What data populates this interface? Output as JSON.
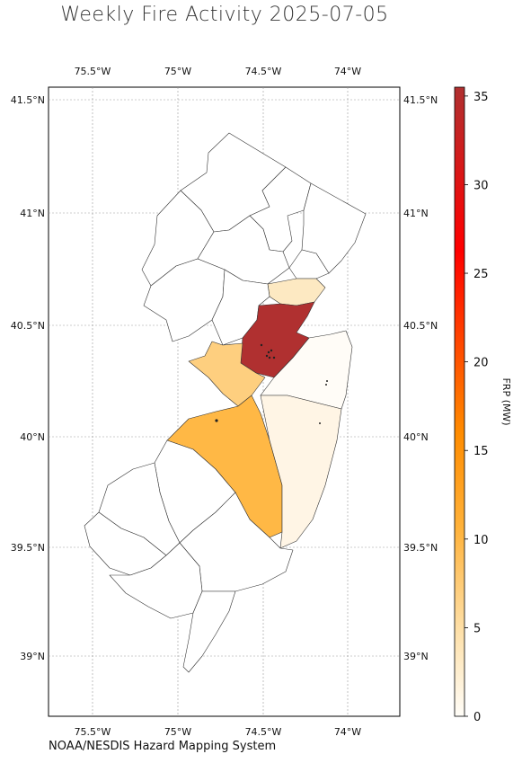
{
  "title": "Weekly Fire Activity 2025-07-05",
  "source": "NOAA/NESDIS Hazard Mapping System",
  "map": {
    "lon_ticks": [
      "75.5°W",
      "75°W",
      "74.5°W",
      "74°W"
    ],
    "lat_ticks": [
      "41.5°N",
      "41°N",
      "40.5°N",
      "40°N",
      "39.5°N",
      "39°N"
    ],
    "gridlines": true
  },
  "colorbar": {
    "label": "FRP (MW)",
    "ticks": [
      "0",
      "5",
      "10",
      "15",
      "20",
      "25",
      "30",
      "35"
    ],
    "min": 0,
    "max": 35.5
  },
  "colors": {
    "frp_max": "#b03030",
    "frp_mid": "#ffb845",
    "frp_low": "#fecf7f",
    "frp_very_low": "#fde9c2",
    "frp_near_zero": "#fff5e5",
    "frp_zero": "#fffcf7"
  }
}
